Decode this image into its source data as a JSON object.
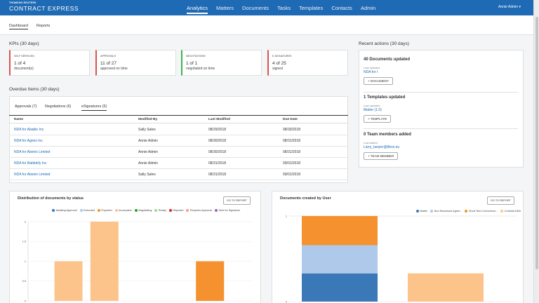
{
  "app": {
    "brand_top": "THOMSON REUTERS",
    "brand_main": "CONTRACT EXPRESS",
    "nav": [
      "Analytics",
      "Matters",
      "Documents",
      "Tasks",
      "Templates",
      "Contacts",
      "Admin"
    ],
    "user": "Annie Admin ▾"
  },
  "subtabs": [
    "Dashboard",
    "Reports"
  ],
  "kpis": {
    "title": "KPIs (30 days)",
    "cards": [
      {
        "label": "SELF SERVICED",
        "value": "1 of 4",
        "desc": "document(s)",
        "color": "#d9534f"
      },
      {
        "label": "APPROVALS",
        "value": "11 of 27",
        "desc": "approved on time",
        "color": "#d9534f"
      },
      {
        "label": "NEGOTIATIONS",
        "value": "1 of 1",
        "desc": "negotiated on time",
        "color": "#3cb44b"
      },
      {
        "label": "E-SIGNATURES",
        "value": "4 of 25",
        "desc": "signed",
        "color": "#d9534f"
      }
    ]
  },
  "overdue": {
    "title": "Overdue Items (30 days)",
    "tabs": [
      "Approvals (7)",
      "Negotiations (6)",
      "eSignatures (5)"
    ],
    "columns": [
      "Name",
      "Modified By",
      "Last Modified",
      "Due Date"
    ],
    "rows": [
      [
        "NDA for Abable Inc",
        "Sally Sales",
        "08/29/2018",
        "08/30/2018"
      ],
      [
        "NDA for Agnes Inc",
        "Annie Admin",
        "08/30/2018",
        "08/31/2018"
      ],
      [
        "NDA for Abenix Limited",
        "Annie Admin",
        "08/30/2018",
        "08/31/2018"
      ],
      [
        "NDA for Babblefy Inc",
        "Annie Admin",
        "08/31/2018",
        "09/01/2018"
      ],
      [
        "NDA for Abenix Limited",
        "Sally Sales",
        "08/31/2018",
        "09/01/2018"
      ]
    ]
  },
  "recent": {
    "title": "Recent actions (30 days)",
    "blocks": [
      {
        "title": "40 Documents updated",
        "small": "Last updated",
        "link": "NDA for I",
        "button": "+ DOCUMENT"
      },
      {
        "title": "1 Templates updated",
        "small": "Last updated",
        "link": "Matter (1.0)",
        "button": "+ TEMPLATE"
      },
      {
        "title": "0 Team members added",
        "small": "Last added",
        "link": "Larry_lawyer@tlbox.eu",
        "button": "+ TEAM MEMBER"
      }
    ]
  },
  "report_button": "GO TO REPORT",
  "chart_data": [
    {
      "type": "bar",
      "title": "Distribution of documents by status",
      "legend": [
        "Awaiting Approval",
        "Executed",
        "Exported",
        "Incomplete",
        "Negotiating",
        "Ready",
        "Rejected",
        "Requires Approval",
        "Sent for Signature"
      ],
      "legend_colors": [
        "#3a78b8",
        "#aec9ea",
        "#f5912e",
        "#fcc48a",
        "#2ca02c",
        "#98df8a",
        "#d62728",
        "#ff9896",
        "#9467bd"
      ],
      "bars": [
        {
          "status": "Incomplete",
          "value": 1
        },
        {
          "status": "Incomplete",
          "value": 2
        },
        {
          "status": "Exported",
          "value": 1
        }
      ],
      "y_ticks": [
        "0",
        "0.5",
        "1",
        "1.5",
        "2"
      ],
      "ylim": [
        0,
        2
      ],
      "grid": true
    },
    {
      "type": "bar",
      "title": "Documents created by User",
      "legend": [
        "Matter",
        "Non Disclosure Agree...",
        "Short Term Commerce...",
        "Corbolia NDA"
      ],
      "legend_colors": [
        "#3a78b8",
        "#aec9ea",
        "#f5912e",
        "#fcc48a"
      ],
      "stacks": [
        {
          "segments": [
            {
              "series": "Matter",
              "value": 0.33
            },
            {
              "series": "Non Disclosure Agree...",
              "value": 0.33
            },
            {
              "series": "Short Term Commerce...",
              "value": 0.34
            }
          ]
        },
        {
          "segments": [
            {
              "series": "Corbolia NDA",
              "value": 0.33
            }
          ]
        }
      ],
      "y_ticks": [
        "0",
        "1"
      ],
      "ylim": [
        0,
        1
      ],
      "grid": true
    }
  ]
}
